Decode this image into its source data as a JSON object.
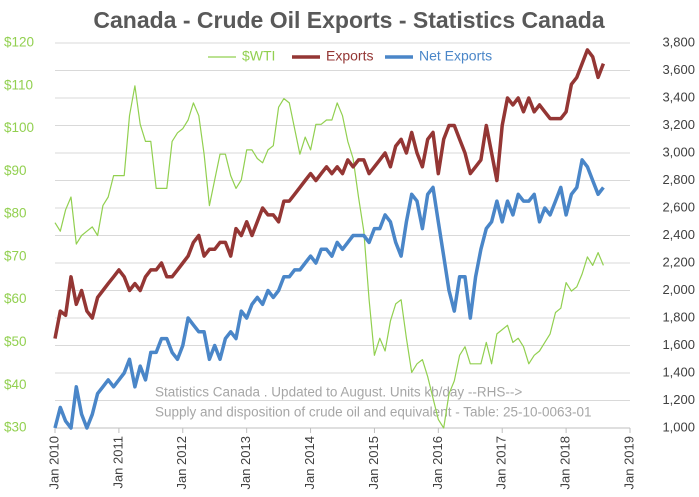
{
  "chart_data": {
    "type": "line",
    "title": "Canada - Crude Oil Exports - Statistics Canada",
    "annotations": [
      "Statistics Canada . Updated to August. Units kb/day --RHS-->",
      "Supply and disposition of crude oil and equivalent  - Table: 25-10-0063-01"
    ],
    "x": [
      "2010-01",
      "2010-02",
      "2010-03",
      "2010-04",
      "2010-05",
      "2010-06",
      "2010-07",
      "2010-08",
      "2010-09",
      "2010-10",
      "2010-11",
      "2010-12",
      "2011-01",
      "2011-02",
      "2011-03",
      "2011-04",
      "2011-05",
      "2011-06",
      "2011-07",
      "2011-08",
      "2011-09",
      "2011-10",
      "2011-11",
      "2011-12",
      "2012-01",
      "2012-02",
      "2012-03",
      "2012-04",
      "2012-05",
      "2012-06",
      "2012-07",
      "2012-08",
      "2012-09",
      "2012-10",
      "2012-11",
      "2012-12",
      "2013-01",
      "2013-02",
      "2013-03",
      "2013-04",
      "2013-05",
      "2013-06",
      "2013-07",
      "2013-08",
      "2013-09",
      "2013-10",
      "2013-11",
      "2013-12",
      "2014-01",
      "2014-02",
      "2014-03",
      "2014-04",
      "2014-05",
      "2014-06",
      "2014-07",
      "2014-08",
      "2014-09",
      "2014-10",
      "2014-11",
      "2014-12",
      "2015-01",
      "2015-02",
      "2015-03",
      "2015-04",
      "2015-05",
      "2015-06",
      "2015-07",
      "2015-08",
      "2015-09",
      "2015-10",
      "2015-11",
      "2015-12",
      "2016-01",
      "2016-02",
      "2016-03",
      "2016-04",
      "2016-05",
      "2016-06",
      "2016-07",
      "2016-08",
      "2016-09",
      "2016-10",
      "2016-11",
      "2016-12",
      "2017-01",
      "2017-02",
      "2017-03",
      "2017-04",
      "2017-05",
      "2017-06",
      "2017-07",
      "2017-08",
      "2017-09",
      "2017-10",
      "2017-11",
      "2017-12",
      "2018-01",
      "2018-02",
      "2018-03",
      "2018-04",
      "2018-05",
      "2018-06",
      "2018-07",
      "2018-08"
    ],
    "series": [
      {
        "name": "$WTI",
        "color": "#92d050",
        "axis": "y",
        "width": 1.2,
        "values": [
          78,
          76,
          81,
          84,
          73,
          75,
          76,
          77,
          75,
          82,
          84,
          89,
          89,
          89,
          103,
          110,
          101,
          97,
          97,
          86,
          86,
          86,
          97,
          99,
          100,
          102,
          106,
          103,
          94,
          82,
          88,
          94,
          94,
          89,
          86,
          88,
          95,
          95,
          93,
          92,
          95,
          96,
          105,
          107,
          106,
          100,
          94,
          98,
          95,
          101,
          101,
          102,
          102,
          106,
          103,
          97,
          93,
          84,
          76,
          60,
          47,
          51,
          48,
          55,
          59,
          60,
          51,
          43,
          45,
          46,
          42,
          37,
          32,
          30,
          38,
          41,
          47,
          49,
          45,
          45,
          45,
          50,
          45,
          52,
          53,
          54,
          50,
          51,
          49,
          45,
          47,
          48,
          50,
          52,
          57,
          58,
          64,
          62,
          63,
          66,
          70,
          68,
          71,
          68
        ]
      },
      {
        "name": "Exports",
        "color": "#943634",
        "axis": "y2",
        "width": 3.5,
        "values": [
          1650,
          1850,
          1820,
          2100,
          1900,
          2000,
          1850,
          1800,
          1950,
          2000,
          2050,
          2100,
          2150,
          2100,
          2000,
          2050,
          2000,
          2100,
          2150,
          2150,
          2200,
          2100,
          2100,
          2150,
          2200,
          2250,
          2350,
          2400,
          2250,
          2300,
          2300,
          2350,
          2350,
          2250,
          2450,
          2400,
          2500,
          2400,
          2500,
          2600,
          2550,
          2550,
          2500,
          2650,
          2650,
          2700,
          2750,
          2800,
          2850,
          2800,
          2850,
          2900,
          2850,
          2900,
          2850,
          2950,
          2900,
          2950,
          2950,
          2850,
          2900,
          2950,
          3000,
          2900,
          3050,
          3100,
          3000,
          3150,
          3000,
          2900,
          3100,
          3150,
          2850,
          3100,
          3200,
          3200,
          3100,
          3000,
          2850,
          2900,
          2950,
          3200,
          3000,
          2800,
          3200,
          3400,
          3350,
          3400,
          3300,
          3400,
          3300,
          3350,
          3300,
          3250,
          3250,
          3250,
          3300,
          3500,
          3550,
          3650,
          3750,
          3700,
          3550,
          3650
        ]
      },
      {
        "name": "Net Exports",
        "color": "#4a86c8",
        "axis": "y2",
        "width": 3.5,
        "values": [
          1000,
          1150,
          1050,
          1000,
          1300,
          1100,
          1000,
          1100,
          1250,
          1300,
          1350,
          1300,
          1350,
          1400,
          1500,
          1300,
          1450,
          1350,
          1550,
          1550,
          1650,
          1650,
          1550,
          1500,
          1600,
          1800,
          1750,
          1700,
          1700,
          1500,
          1600,
          1500,
          1650,
          1700,
          1650,
          1850,
          1800,
          1900,
          1950,
          1900,
          2000,
          1950,
          2000,
          2100,
          2100,
          2150,
          2150,
          2200,
          2250,
          2200,
          2300,
          2300,
          2250,
          2350,
          2300,
          2350,
          2400,
          2400,
          2400,
          2350,
          2450,
          2450,
          2550,
          2500,
          2350,
          2250,
          2500,
          2700,
          2650,
          2450,
          2700,
          2750,
          2500,
          2250,
          2000,
          1850,
          2100,
          2100,
          1800,
          2100,
          2300,
          2450,
          2500,
          2650,
          2500,
          2650,
          2550,
          2700,
          2650,
          2650,
          2700,
          2500,
          2600,
          2550,
          2650,
          2750,
          2550,
          2700,
          2750,
          2950,
          2900,
          2800,
          2700,
          2750
        ]
      }
    ],
    "xlim": [
      "2010-01",
      "2019-01"
    ],
    "xticks": [
      {
        "value": "2010-01",
        "label": "Jan 2010"
      },
      {
        "value": "2011-01",
        "label": "Jan 2011"
      },
      {
        "value": "2012-01",
        "label": "Jan 2012"
      },
      {
        "value": "2013-01",
        "label": "Jan 2013"
      },
      {
        "value": "2014-01",
        "label": "Jan 2014"
      },
      {
        "value": "2015-01",
        "label": "Jan 2015"
      },
      {
        "value": "2016-01",
        "label": "Jan 2016"
      },
      {
        "value": "2017-01",
        "label": "Jan 2017"
      },
      {
        "value": "2018-01",
        "label": "Jan 2018"
      },
      {
        "value": "2019-01",
        "label": "Jan 2019"
      }
    ],
    "ylim": [
      30,
      120
    ],
    "yticks": [
      {
        "value": 30,
        "label": "$30"
      },
      {
        "value": 40,
        "label": "$40"
      },
      {
        "value": 50,
        "label": "$50"
      },
      {
        "value": 60,
        "label": "$60"
      },
      {
        "value": 70,
        "label": "$70"
      },
      {
        "value": 80,
        "label": "$80"
      },
      {
        "value": 90,
        "label": "$90"
      },
      {
        "value": 100,
        "label": "$100"
      },
      {
        "value": 110,
        "label": "$110"
      },
      {
        "value": 120,
        "label": "$120"
      }
    ],
    "y2lim": [
      1000,
      3800
    ],
    "y2ticks": [
      {
        "value": 1000,
        "label": "1,000"
      },
      {
        "value": 1200,
        "label": "1,200"
      },
      {
        "value": 1400,
        "label": "1,400"
      },
      {
        "value": 1600,
        "label": "1,600"
      },
      {
        "value": 1800,
        "label": "1,800"
      },
      {
        "value": 2000,
        "label": "2,000"
      },
      {
        "value": 2200,
        "label": "2,200"
      },
      {
        "value": 2400,
        "label": "2,400"
      },
      {
        "value": 2600,
        "label": "2,600"
      },
      {
        "value": 2800,
        "label": "2,800"
      },
      {
        "value": 3000,
        "label": "3,000"
      },
      {
        "value": 3200,
        "label": "3,200"
      },
      {
        "value": 3400,
        "label": "3,400"
      },
      {
        "value": 3600,
        "label": "3,600"
      },
      {
        "value": 3800,
        "label": "3,800"
      }
    ],
    "y_tick_color": "#92d050",
    "grid": true,
    "legend": "top"
  }
}
